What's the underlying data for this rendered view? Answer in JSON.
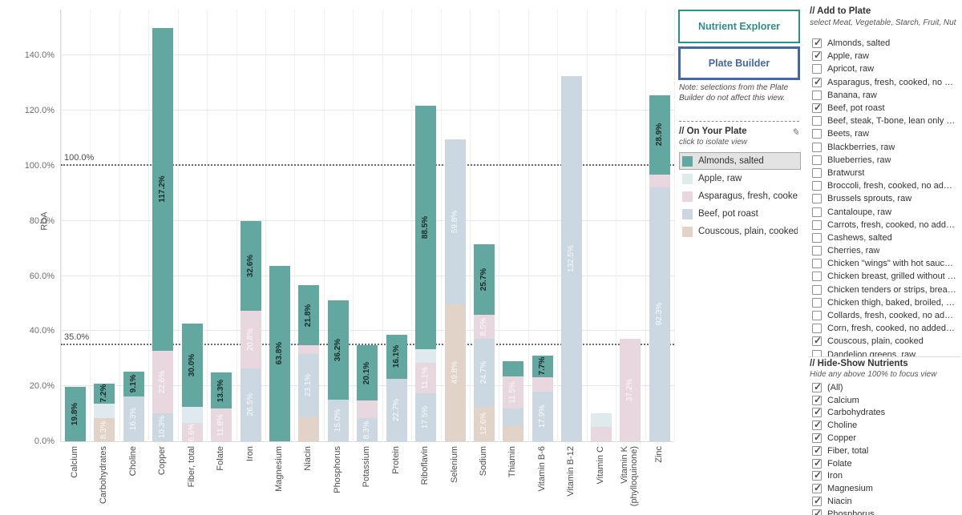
{
  "colors": {
    "almonds": "#63A8A0",
    "apple": "#DFEAEF",
    "asparagus": "#E8D7DF",
    "beef": "#CBD8E2",
    "couscous": "#E1D3C7",
    "nutrient_explorer_accent": "#2E8F85",
    "plate_builder_accent": "#4467A8"
  },
  "chart_data": {
    "type": "bar",
    "stacked": true,
    "title": "",
    "xlabel": "",
    "ylabel": "RDA",
    "ylim": [
      0,
      155
    ],
    "y_ticks": [
      {
        "value": 0,
        "label": "0.0%"
      },
      {
        "value": 20,
        "label": "20.0%"
      },
      {
        "value": 40,
        "label": "40.0%"
      },
      {
        "value": 60,
        "label": "60.0%"
      },
      {
        "value": 80,
        "label": "80.0%"
      },
      {
        "value": 100,
        "label": "100.0%"
      },
      {
        "value": 120,
        "label": "120.0%"
      },
      {
        "value": 140,
        "label": "140.0%"
      }
    ],
    "reference_lines": [
      {
        "value": 35,
        "label": "35.0%"
      },
      {
        "value": 100,
        "label": "100.0%"
      }
    ],
    "grid": true,
    "legend_position": "right-panel",
    "categories": [
      "Calcium",
      "Carbohydrates",
      "Choline",
      "Copper",
      "Fiber, total",
      "Folate",
      "Iron",
      "Magnesium",
      "Niacin",
      "Phosphorus",
      "Potassium",
      "Protein",
      "Riboflavin",
      "Selenium",
      "Sodium",
      "Thiamin",
      "Vitamin B-6",
      "Vitamin B-12",
      "Vitamin C",
      "Vitamin K (phylloquinone)",
      "Zinc"
    ],
    "stack_order": "bottom_to_top",
    "series": [
      {
        "name": "Couscous, plain, cooked",
        "color_key": "couscous",
        "label_style": "light",
        "values": [
          0,
          8.3,
          0,
          0,
          0,
          0,
          0,
          0,
          8.7,
          0,
          0,
          0,
          0,
          49.8,
          12.6,
          5.5,
          0,
          0,
          0,
          0,
          0
        ],
        "labels": [
          null,
          "8.3%",
          null,
          null,
          null,
          null,
          null,
          null,
          null,
          null,
          null,
          null,
          null,
          "49.8%",
          "12.6%",
          null,
          null,
          null,
          null,
          null,
          null
        ]
      },
      {
        "name": "Beef, pot roast",
        "color_key": "beef",
        "label_style": "light",
        "values": [
          0,
          0,
          16.3,
          10.3,
          0,
          0,
          26.5,
          0,
          23.1,
          15.0,
          8.3,
          22.7,
          17.5,
          59.8,
          24.7,
          6.5,
          17.9,
          132.5,
          0,
          0,
          92.3
        ],
        "labels": [
          null,
          null,
          "16.3%",
          "10.3%",
          null,
          null,
          "26.5%",
          null,
          "23.1%",
          "15.0%",
          "8.3%",
          "22.7%",
          "17.5%",
          "59.8%",
          "24.7%",
          null,
          "17.9%",
          "132.5%",
          null,
          null,
          "92.3%"
        ]
      },
      {
        "name": "Asparagus, fresh, cooked, no added fat",
        "color_key": "asparagus",
        "label_style": "light",
        "values": [
          0,
          0,
          0,
          22.6,
          6.6,
          11.8,
          20.8,
          0,
          3.0,
          0,
          6.5,
          0,
          11.1,
          0,
          8.5,
          11.5,
          5.5,
          0,
          5.2,
          37.2,
          4.5
        ],
        "labels": [
          null,
          null,
          null,
          "22.6%",
          "6.6%",
          "11.8%",
          "20.8%",
          null,
          null,
          null,
          null,
          null,
          "11.1%",
          null,
          "8.5%",
          "11.5%",
          null,
          null,
          null,
          "37.2%",
          null
        ]
      },
      {
        "name": "Apple, raw",
        "color_key": "apple",
        "label_style": "light",
        "values": [
          0,
          5.5,
          0,
          0,
          6.0,
          0,
          0,
          0,
          0,
          0,
          0,
          0,
          4.8,
          0,
          0,
          0,
          0,
          0,
          5.1,
          0,
          0
        ],
        "labels": [
          null,
          null,
          null,
          null,
          null,
          null,
          null,
          null,
          null,
          null,
          null,
          null,
          null,
          null,
          null,
          null,
          null,
          null,
          null,
          null,
          null
        ]
      },
      {
        "name": "Almonds, salted",
        "color_key": "almonds",
        "label_style": "dark",
        "values": [
          19.8,
          7.2,
          9.1,
          117.2,
          30.0,
          13.3,
          32.6,
          63.8,
          21.8,
          36.2,
          20.1,
          16.1,
          88.5,
          0,
          25.7,
          5.6,
          7.7,
          0,
          0,
          0,
          28.9
        ],
        "labels": [
          "19.8%",
          "7.2%",
          "9.1%",
          "117.2%",
          "30.0%",
          "13.3%",
          "32.6%",
          "63.8%",
          "21.8%",
          "36.2%",
          "20.1%",
          "16.1%",
          "88.5%",
          null,
          "25.7%",
          null,
          "7.7%",
          null,
          null,
          null,
          "28.9%"
        ]
      }
    ]
  },
  "buttons": {
    "nutrient_explorer": "Nutrient Explorer",
    "plate_builder": "Plate Builder"
  },
  "note": "Note: selections from the Plate Builder do not affect this view.",
  "on_your_plate": {
    "title": "// On Your Plate",
    "subtitle": "click to isolate view",
    "edit_icon": "✎",
    "items": [
      {
        "label": "Almonds, salted",
        "color_key": "almonds",
        "selected": true
      },
      {
        "label": "Apple, raw",
        "color_key": "apple",
        "selected": false
      },
      {
        "label": "Asparagus, fresh, cooked, …",
        "color_key": "asparagus",
        "selected": false
      },
      {
        "label": "Beef, pot roast",
        "color_key": "beef",
        "selected": false
      },
      {
        "label": "Couscous, plain, cooked",
        "color_key": "couscous",
        "selected": false
      }
    ]
  },
  "add_to_plate": {
    "title": "// Add to Plate",
    "subtitle": "select Meat, Vegetable, Starch, Fruit, Nut",
    "items": [
      {
        "label": "Almonds, salted",
        "checked": true
      },
      {
        "label": "Apple, raw",
        "checked": true
      },
      {
        "label": "Apricot, raw",
        "checked": false
      },
      {
        "label": "Asparagus, fresh, cooked, no add…",
        "checked": true
      },
      {
        "label": "Banana, raw",
        "checked": false
      },
      {
        "label": "Beef, pot roast",
        "checked": true
      },
      {
        "label": "Beef, steak, T-bone, lean only eaten",
        "checked": false
      },
      {
        "label": "Beets, raw",
        "checked": false
      },
      {
        "label": "Blackberries, raw",
        "checked": false
      },
      {
        "label": "Blueberries, raw",
        "checked": false
      },
      {
        "label": "Bratwurst",
        "checked": false
      },
      {
        "label": "Broccoli, fresh, cooked, no added …",
        "checked": false
      },
      {
        "label": "Brussels sprouts, raw",
        "checked": false
      },
      {
        "label": "Cantaloupe, raw",
        "checked": false
      },
      {
        "label": "Carrots, fresh, cooked, no added fat",
        "checked": false
      },
      {
        "label": "Cashews, salted",
        "checked": false
      },
      {
        "label": "Cherries, raw",
        "checked": false
      },
      {
        "label": "Chicken \"wings\" with hot sauce, fr…",
        "checked": false
      },
      {
        "label": "Chicken breast, grilled without sa…",
        "checked": false
      },
      {
        "label": "Chicken tenders or strips, breade…",
        "checked": false
      },
      {
        "label": "Chicken thigh, baked, broiled, or r…",
        "checked": false
      },
      {
        "label": "Collards, fresh, cooked, no added…",
        "checked": false
      },
      {
        "label": "Corn, fresh, cooked, no added fat",
        "checked": false
      },
      {
        "label": "Couscous, plain, cooked",
        "checked": true
      },
      {
        "label": "Dandelion greens, raw",
        "checked": false
      }
    ]
  },
  "hide_show": {
    "title": "// Hide-Show Nutrients",
    "subtitle": "Hide any above 100% to focus view",
    "items": [
      {
        "label": "(All)",
        "checked": true
      },
      {
        "label": "Calcium",
        "checked": true
      },
      {
        "label": "Carbohydrates",
        "checked": true
      },
      {
        "label": "Choline",
        "checked": true
      },
      {
        "label": "Copper",
        "checked": true
      },
      {
        "label": "Fiber, total",
        "checked": true
      },
      {
        "label": "Folate",
        "checked": true
      },
      {
        "label": "Iron",
        "checked": true
      },
      {
        "label": "Magnesium",
        "checked": true
      },
      {
        "label": "Niacin",
        "checked": true
      },
      {
        "label": "Phosphorus",
        "checked": true
      }
    ]
  }
}
